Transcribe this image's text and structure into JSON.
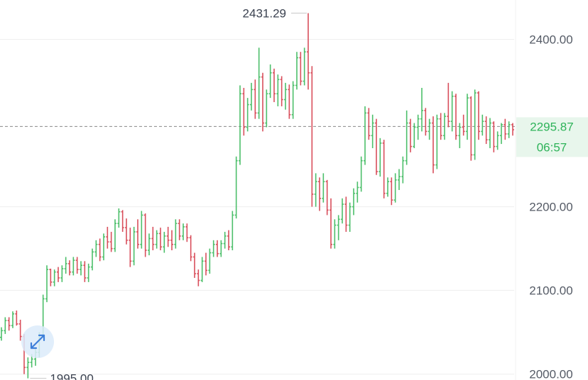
{
  "chart_data": {
    "type": "bar",
    "style": "ohlc",
    "ylim": [
      1993,
      2447
    ],
    "y_ticks": [
      {
        "value": 2400,
        "label": "2400.00"
      },
      {
        "value": 2200,
        "label": "2200.00"
      },
      {
        "value": 2100,
        "label": "2100.00"
      },
      {
        "value": 2000,
        "label": "2000.00"
      }
    ],
    "high_label": "2431.29",
    "low_label": "1995.00",
    "current_price": 2295.87,
    "current_price_label": "2295.87",
    "countdown": "06:57",
    "colors": {
      "up": "#4cbf6a",
      "down": "#d94f5c",
      "current": "#2fb35a",
      "tag_bg": "#e8f6ec",
      "grid": "#eeeeee",
      "dashed": "#888888"
    },
    "candles": [
      [
        2044,
        2056,
        2040,
        2052
      ],
      [
        2052,
        2068,
        2048,
        2064
      ],
      [
        2064,
        2068,
        2052,
        2058
      ],
      [
        2058,
        2075,
        2055,
        2072
      ],
      [
        2072,
        2076,
        2058,
        2060
      ],
      [
        2060,
        2065,
        2040,
        2045
      ],
      [
        2045,
        2048,
        2000,
        2008
      ],
      [
        2008,
        2020,
        1995,
        2014
      ],
      [
        2014,
        2024,
        2008,
        2018
      ],
      [
        2018,
        2030,
        2010,
        2026
      ],
      [
        2026,
        2050,
        2020,
        2046
      ],
      [
        2046,
        2095,
        2044,
        2090
      ],
      [
        2090,
        2130,
        2086,
        2125
      ],
      [
        2125,
        2126,
        2105,
        2110
      ],
      [
        2110,
        2125,
        2105,
        2122
      ],
      [
        2122,
        2128,
        2110,
        2115
      ],
      [
        2115,
        2130,
        2110,
        2126
      ],
      [
        2126,
        2140,
        2120,
        2132
      ],
      [
        2132,
        2136,
        2118,
        2122
      ],
      [
        2122,
        2140,
        2118,
        2136
      ],
      [
        2136,
        2140,
        2120,
        2125
      ],
      [
        2125,
        2135,
        2118,
        2130
      ],
      [
        2130,
        2135,
        2110,
        2115
      ],
      [
        2115,
        2132,
        2110,
        2128
      ],
      [
        2128,
        2150,
        2124,
        2146
      ],
      [
        2146,
        2160,
        2140,
        2155
      ],
      [
        2155,
        2162,
        2135,
        2140
      ],
      [
        2140,
        2168,
        2136,
        2164
      ],
      [
        2164,
        2176,
        2150,
        2158
      ],
      [
        2158,
        2170,
        2146,
        2150
      ],
      [
        2150,
        2185,
        2146,
        2180
      ],
      [
        2180,
        2198,
        2175,
        2194
      ],
      [
        2194,
        2196,
        2170,
        2175
      ],
      [
        2175,
        2186,
        2155,
        2160
      ],
      [
        2160,
        2175,
        2128,
        2135
      ],
      [
        2135,
        2176,
        2130,
        2170
      ],
      [
        2170,
        2185,
        2150,
        2155
      ],
      [
        2155,
        2195,
        2150,
        2190
      ],
      [
        2190,
        2192,
        2140,
        2148
      ],
      [
        2148,
        2168,
        2142,
        2162
      ],
      [
        2162,
        2176,
        2148,
        2155
      ],
      [
        2155,
        2172,
        2150,
        2168
      ],
      [
        2168,
        2175,
        2148,
        2152
      ],
      [
        2152,
        2170,
        2145,
        2165
      ],
      [
        2165,
        2176,
        2152,
        2160
      ],
      [
        2160,
        2172,
        2148,
        2155
      ],
      [
        2155,
        2185,
        2150,
        2180
      ],
      [
        2180,
        2185,
        2160,
        2165
      ],
      [
        2165,
        2180,
        2160,
        2176
      ],
      [
        2176,
        2180,
        2158,
        2163
      ],
      [
        2163,
        2166,
        2135,
        2140
      ],
      [
        2140,
        2145,
        2115,
        2120
      ],
      [
        2120,
        2125,
        2105,
        2112
      ],
      [
        2112,
        2140,
        2110,
        2135
      ],
      [
        2135,
        2145,
        2118,
        2124
      ],
      [
        2124,
        2150,
        2120,
        2145
      ],
      [
        2145,
        2160,
        2140,
        2155
      ],
      [
        2155,
        2160,
        2140,
        2144
      ],
      [
        2144,
        2160,
        2140,
        2156
      ],
      [
        2156,
        2170,
        2150,
        2165
      ],
      [
        2165,
        2172,
        2148,
        2152
      ],
      [
        2152,
        2195,
        2148,
        2190
      ],
      [
        2190,
        2260,
        2186,
        2255
      ],
      [
        2255,
        2345,
        2250,
        2335
      ],
      [
        2335,
        2342,
        2285,
        2295
      ],
      [
        2295,
        2330,
        2290,
        2322
      ],
      [
        2322,
        2348,
        2315,
        2340
      ],
      [
        2340,
        2352,
        2305,
        2312
      ],
      [
        2312,
        2390,
        2305,
        2355
      ],
      [
        2355,
        2360,
        2290,
        2300
      ],
      [
        2300,
        2340,
        2295,
        2335
      ],
      [
        2335,
        2370,
        2330,
        2360
      ],
      [
        2360,
        2365,
        2325,
        2335
      ],
      [
        2335,
        2358,
        2320,
        2352
      ],
      [
        2352,
        2356,
        2320,
        2328
      ],
      [
        2328,
        2348,
        2316,
        2340
      ],
      [
        2340,
        2346,
        2305,
        2310
      ],
      [
        2310,
        2350,
        2305,
        2345
      ],
      [
        2345,
        2385,
        2340,
        2378
      ],
      [
        2378,
        2385,
        2345,
        2350
      ],
      [
        2350,
        2390,
        2345,
        2385
      ],
      [
        2385,
        2431.29,
        2340,
        2360
      ],
      [
        2360,
        2368,
        2200,
        2215
      ],
      [
        2215,
        2240,
        2200,
        2230
      ],
      [
        2230,
        2235,
        2195,
        2210
      ],
      [
        2210,
        2240,
        2205,
        2230
      ],
      [
        2230,
        2232,
        2190,
        2196
      ],
      [
        2196,
        2210,
        2150,
        2155
      ],
      [
        2155,
        2185,
        2150,
        2178
      ],
      [
        2178,
        2190,
        2160,
        2185
      ],
      [
        2185,
        2210,
        2180,
        2203
      ],
      [
        2203,
        2212,
        2170,
        2178
      ],
      [
        2178,
        2205,
        2170,
        2200
      ],
      [
        2200,
        2222,
        2190,
        2216
      ],
      [
        2216,
        2230,
        2205,
        2223
      ],
      [
        2223,
        2260,
        2218,
        2255
      ],
      [
        2255,
        2320,
        2250,
        2312
      ],
      [
        2312,
        2318,
        2280,
        2285
      ],
      [
        2285,
        2310,
        2270,
        2300
      ],
      [
        2300,
        2305,
        2238,
        2242
      ],
      [
        2242,
        2282,
        2236,
        2276
      ],
      [
        2276,
        2280,
        2210,
        2216
      ],
      [
        2216,
        2235,
        2212,
        2230
      ],
      [
        2230,
        2235,
        2202,
        2208
      ],
      [
        2208,
        2240,
        2205,
        2232
      ],
      [
        2232,
        2245,
        2220,
        2236
      ],
      [
        2236,
        2260,
        2228,
        2255
      ],
      [
        2255,
        2315,
        2250,
        2300
      ],
      [
        2300,
        2305,
        2265,
        2272
      ],
      [
        2272,
        2300,
        2270,
        2295
      ],
      [
        2295,
        2310,
        2280,
        2305
      ],
      [
        2305,
        2342,
        2290,
        2315
      ],
      [
        2315,
        2318,
        2285,
        2290
      ],
      [
        2290,
        2305,
        2280,
        2300
      ],
      [
        2300,
        2308,
        2240,
        2250
      ],
      [
        2250,
        2310,
        2245,
        2305
      ],
      [
        2305,
        2312,
        2280,
        2285
      ],
      [
        2285,
        2312,
        2280,
        2308
      ],
      [
        2308,
        2348,
        2295,
        2302
      ],
      [
        2302,
        2338,
        2290,
        2332
      ],
      [
        2332,
        2335,
        2280,
        2285
      ],
      [
        2285,
        2300,
        2270,
        2295
      ],
      [
        2295,
        2310,
        2285,
        2290
      ],
      [
        2290,
        2335,
        2280,
        2330
      ],
      [
        2330,
        2332,
        2255,
        2262
      ],
      [
        2262,
        2340,
        2256,
        2336
      ],
      [
        2336,
        2338,
        2280,
        2290
      ],
      [
        2290,
        2310,
        2285,
        2302
      ],
      [
        2302,
        2308,
        2275,
        2280
      ],
      [
        2280,
        2306,
        2270,
        2300
      ],
      [
        2300,
        2302,
        2265,
        2272
      ],
      [
        2272,
        2290,
        2268,
        2285
      ],
      [
        2285,
        2300,
        2275,
        2298
      ],
      [
        2298,
        2305,
        2280,
        2287
      ],
      [
        2287,
        2302,
        2282,
        2298
      ],
      [
        2298,
        2300,
        2285,
        2292
      ]
    ]
  }
}
